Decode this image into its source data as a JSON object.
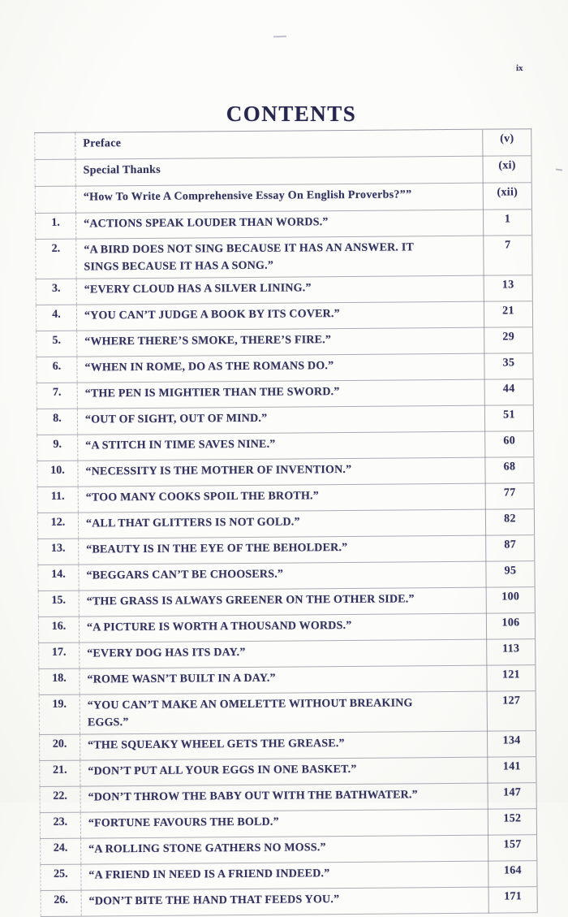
{
  "page": {
    "corner_label": "ix",
    "title": "CONTENTS"
  },
  "colors": {
    "ink": "#32325e",
    "paper": "#fbfbf8",
    "table_border": "#69697a"
  },
  "toc": {
    "rows": [
      {
        "num": "",
        "title": "Preface",
        "page": "(v)"
      },
      {
        "num": "",
        "title": "Special Thanks",
        "page": "(xi)"
      },
      {
        "num": "",
        "title": "“How To Write A Comprehensive Essay On English Proverbs?””",
        "page": "(xii)"
      },
      {
        "num": "1.",
        "title": "“ACTIONS SPEAK LOUDER THAN WORDS.”",
        "page": "1"
      },
      {
        "num": "2.",
        "title": "“A BIRD DOES NOT SING BECAUSE IT HAS AN ANSWER. IT SINGS BECAUSE IT HAS A SONG.”",
        "page": "7"
      },
      {
        "num": "3.",
        "title": "“EVERY CLOUD HAS A SILVER LINING.”",
        "page": "13"
      },
      {
        "num": "4.",
        "title": "“YOU CAN’T JUDGE A BOOK BY ITS COVER.”",
        "page": "21"
      },
      {
        "num": "5.",
        "title": "“WHERE THERE’S SMOKE, THERE’S FIRE.”",
        "page": "29"
      },
      {
        "num": "6.",
        "title": "“WHEN IN ROME, DO AS THE ROMANS DO.”",
        "page": "35"
      },
      {
        "num": "7.",
        "title": "“THE PEN IS MIGHTIER THAN THE SWORD.”",
        "page": "44"
      },
      {
        "num": "8.",
        "title": "“OUT OF SIGHT, OUT OF MIND.”",
        "page": "51"
      },
      {
        "num": "9.",
        "title": "“A STITCH IN TIME SAVES NINE.”",
        "page": "60"
      },
      {
        "num": "10.",
        "title": "“NECESSITY IS THE MOTHER OF INVENTION.”",
        "page": "68"
      },
      {
        "num": "11.",
        "title": "“TOO MANY COOKS SPOIL THE BROTH.”",
        "page": "77"
      },
      {
        "num": "12.",
        "title": "“ALL THAT GLITTERS IS NOT GOLD.”",
        "page": "82"
      },
      {
        "num": "13.",
        "title": "“BEAUTY IS IN THE EYE OF THE BEHOLDER.”",
        "page": "87"
      },
      {
        "num": "14.",
        "title": "“BEGGARS CAN’T BE CHOOSERS.”",
        "page": "95"
      },
      {
        "num": "15.",
        "title": "“THE GRASS IS ALWAYS GREENER ON THE OTHER SIDE.”",
        "page": "100"
      },
      {
        "num": "16.",
        "title": "“A PICTURE IS WORTH A THOUSAND WORDS.”",
        "page": "106"
      },
      {
        "num": "17.",
        "title": "“EVERY DOG HAS ITS DAY.”",
        "page": "113"
      },
      {
        "num": "18.",
        "title": "“ROME WASN’T BUILT IN A DAY.”",
        "page": "121"
      },
      {
        "num": "19.",
        "title": "“YOU CAN’T MAKE AN OMELETTE WITHOUT BREAKING EGGS.”",
        "page": "127"
      },
      {
        "num": "20.",
        "title": "“THE SQUEAKY WHEEL GETS THE GREASE.”",
        "page": "134"
      },
      {
        "num": "21.",
        "title": "“DON’T PUT ALL YOUR EGGS IN ONE BASKET.”",
        "page": "141"
      },
      {
        "num": "22.",
        "title": "“DON’T THROW THE BABY OUT WITH THE BATHWATER.”",
        "page": "147"
      },
      {
        "num": "23.",
        "title": "“FORTUNE FAVOURS THE BOLD.”",
        "page": "152"
      },
      {
        "num": "24.",
        "title": "“A ROLLING STONE GATHERS NO MOSS.”",
        "page": "157"
      },
      {
        "num": "25.",
        "title": "“A FRIEND IN NEED IS A FRIEND INDEED.”",
        "page": "164"
      },
      {
        "num": "26.",
        "title": "“DON’T BITE THE HAND THAT FEEDS YOU.”",
        "page": "171"
      }
    ]
  }
}
